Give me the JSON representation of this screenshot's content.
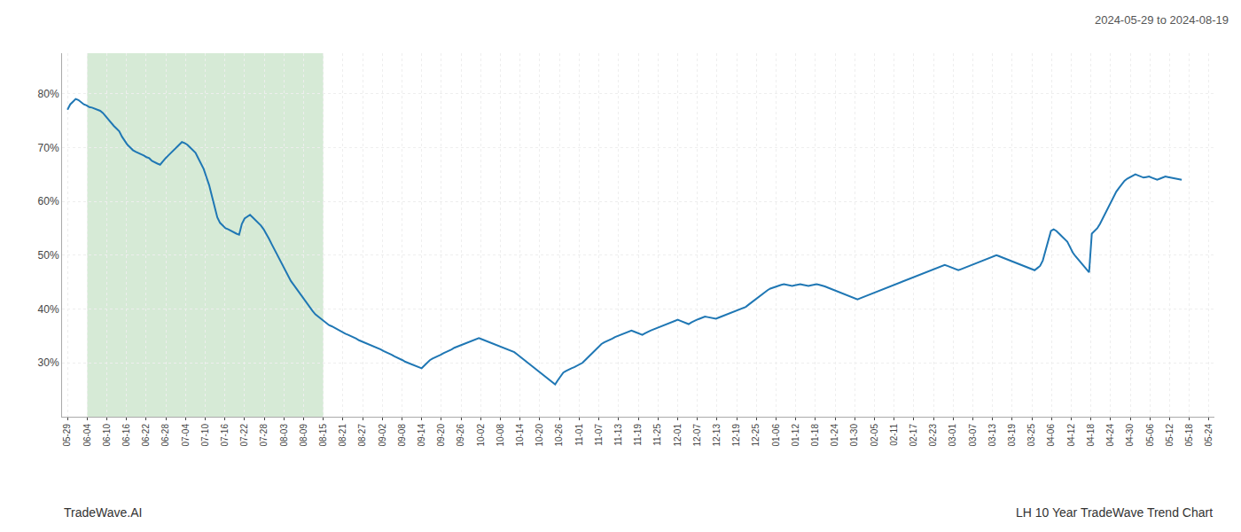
{
  "chart_data": {
    "type": "line",
    "title": "2024-05-29 to 2024-08-19",
    "annotations": [
      {
        "text": "TradeWave.AI"
      },
      {
        "text": "LH 10 Year TradeWave Trend Chart"
      }
    ],
    "color": "#1f77b4",
    "grid": true,
    "highlight": {
      "from": "06-04",
      "to": "08-15",
      "color": "#d6ead6"
    },
    "xlim": [
      -2,
      421
    ],
    "xticks": [
      {
        "value": 0,
        "label": "05-29"
      },
      {
        "value": 7.224138,
        "label": "06-04"
      },
      {
        "value": 14.448276,
        "label": "06-10"
      },
      {
        "value": 21.672414,
        "label": "06-16"
      },
      {
        "value": 28.896552,
        "label": "06-22"
      },
      {
        "value": 36.12069,
        "label": "06-28"
      },
      {
        "value": 43.344828,
        "label": "07-04"
      },
      {
        "value": 50.568966,
        "label": "07-10"
      },
      {
        "value": 57.793103,
        "label": "07-16"
      },
      {
        "value": 65.017241,
        "label": "07-22"
      },
      {
        "value": 72.241379,
        "label": "07-28"
      },
      {
        "value": 79.465517,
        "label": "08-03"
      },
      {
        "value": 86.689655,
        "label": "08-09"
      },
      {
        "value": 93.913793,
        "label": "08-15"
      },
      {
        "value": 101.137931,
        "label": "08-21"
      },
      {
        "value": 108.362069,
        "label": "08-27"
      },
      {
        "value": 115.586207,
        "label": "09-02"
      },
      {
        "value": 122.810345,
        "label": "09-08"
      },
      {
        "value": 130.034483,
        "label": "09-14"
      },
      {
        "value": 137.258621,
        "label": "09-20"
      },
      {
        "value": 144.482759,
        "label": "09-26"
      },
      {
        "value": 151.706897,
        "label": "10-02"
      },
      {
        "value": 158.931034,
        "label": "10-08"
      },
      {
        "value": 166.155172,
        "label": "10-14"
      },
      {
        "value": 173.37931,
        "label": "10-20"
      },
      {
        "value": 180.603448,
        "label": "10-26"
      },
      {
        "value": 187.827586,
        "label": "11-01"
      },
      {
        "value": 195.051724,
        "label": "11-07"
      },
      {
        "value": 202.275862,
        "label": "11-13"
      },
      {
        "value": 209.5,
        "label": "11-19"
      },
      {
        "value": 216.724138,
        "label": "11-25"
      },
      {
        "value": 223.948276,
        "label": "12-01"
      },
      {
        "value": 231.172414,
        "label": "12-07"
      },
      {
        "value": 238.396552,
        "label": "12-13"
      },
      {
        "value": 245.62069,
        "label": "12-19"
      },
      {
        "value": 252.844828,
        "label": "12-25"
      },
      {
        "value": 260.068966,
        "label": "01-06"
      },
      {
        "value": 267.293103,
        "label": "01-12"
      },
      {
        "value": 274.517241,
        "label": "01-18"
      },
      {
        "value": 281.741379,
        "label": "01-24"
      },
      {
        "value": 288.965517,
        "label": "01-30"
      },
      {
        "value": 296.189655,
        "label": "02-05"
      },
      {
        "value": 303.413793,
        "label": "02-11"
      },
      {
        "value": 310.637931,
        "label": "02-17"
      },
      {
        "value": 317.862069,
        "label": "02-23"
      },
      {
        "value": 325.086207,
        "label": "03-01"
      },
      {
        "value": 332.310345,
        "label": "03-07"
      },
      {
        "value": 339.534483,
        "label": "03-13"
      },
      {
        "value": 346.758621,
        "label": "03-19"
      },
      {
        "value": 353.982759,
        "label": "03-25"
      },
      {
        "value": 361.206897,
        "label": "04-06"
      },
      {
        "value": 368.431034,
        "label": "04-12"
      },
      {
        "value": 375.655172,
        "label": "04-18"
      },
      {
        "value": 382.87931,
        "label": "04-24"
      },
      {
        "value": 390.103448,
        "label": "04-30"
      },
      {
        "value": 397.327586,
        "label": "05-06"
      },
      {
        "value": 404.551724,
        "label": "05-12"
      },
      {
        "value": 411.775862,
        "label": "05-18"
      },
      {
        "value": 419,
        "label": "05-24"
      }
    ],
    "ylim": [
      0.2,
      0.875
    ],
    "yticks": [
      {
        "value": 0.3,
        "label": "30%"
      },
      {
        "value": 0.4,
        "label": "40%"
      },
      {
        "value": 0.5,
        "label": "50%"
      },
      {
        "value": 0.6,
        "label": "60%"
      },
      {
        "value": 0.7,
        "label": "70%"
      },
      {
        "value": 0.8,
        "label": "80%"
      }
    ],
    "values": [
      0.77,
      0.78,
      0.785,
      0.79,
      0.788,
      0.784,
      0.78,
      0.778,
      0.775,
      0.774,
      0.772,
      0.77,
      0.768,
      0.764,
      0.758,
      0.752,
      0.745,
      0.74,
      0.735,
      0.73,
      0.72,
      0.712,
      0.705,
      0.7,
      0.695,
      0.692,
      0.69,
      0.688,
      0.685,
      0.682,
      0.68,
      0.675,
      0.672,
      0.67,
      0.668,
      0.675,
      0.68,
      0.685,
      0.69,
      0.695,
      0.7,
      0.705,
      0.71,
      0.708,
      0.705,
      0.7,
      0.695,
      0.69,
      0.68,
      0.67,
      0.66,
      0.645,
      0.63,
      0.61,
      0.59,
      0.57,
      0.56,
      0.555,
      0.55,
      0.548,
      0.545,
      0.542,
      0.54,
      0.538,
      0.558,
      0.568,
      0.572,
      0.575,
      0.57,
      0.565,
      0.56,
      0.555,
      0.548,
      0.54,
      0.53,
      0.52,
      0.51,
      0.5,
      0.49,
      0.48,
      0.47,
      0.46,
      0.452,
      0.445,
      0.438,
      0.43,
      0.422,
      0.415,
      0.408,
      0.402,
      0.396,
      0.39,
      0.386,
      0.382,
      0.378,
      0.374,
      0.37,
      0.368,
      0.365,
      0.362,
      0.36,
      0.357,
      0.354,
      0.352,
      0.35,
      0.348,
      0.345,
      0.342,
      0.34,
      0.338,
      0.336,
      0.334,
      0.332,
      0.33,
      0.328,
      0.325,
      0.322,
      0.32,
      0.318,
      0.315,
      0.312,
      0.31,
      0.308,
      0.305,
      0.302,
      0.3,
      0.298,
      0.296,
      0.294,
      0.292,
      0.29,
      0.295,
      0.3,
      0.305,
      0.308,
      0.31,
      0.312,
      0.315,
      0.318,
      0.32,
      0.322,
      0.325,
      0.328,
      0.33,
      0.332,
      0.334,
      0.336,
      0.338,
      0.34,
      0.342,
      0.344,
      0.346,
      0.344,
      0.342,
      0.34,
      0.338,
      0.336,
      0.334,
      0.332,
      0.33,
      0.328,
      0.326,
      0.324,
      0.322,
      0.32,
      0.316,
      0.312,
      0.308,
      0.304,
      0.3,
      0.296,
      0.292,
      0.288,
      0.284,
      0.28,
      0.276,
      0.272,
      0.268,
      0.264,
      0.26,
      0.268,
      0.275,
      0.282,
      0.285,
      0.288,
      0.29,
      0.292,
      0.295,
      0.298,
      0.3,
      0.305,
      0.31,
      0.315,
      0.32,
      0.325,
      0.33,
      0.335,
      0.338,
      0.34,
      0.342,
      0.345,
      0.348,
      0.35,
      0.352,
      0.354,
      0.356,
      0.358,
      0.36,
      0.358,
      0.356,
      0.354,
      0.352,
      0.355,
      0.358,
      0.36,
      0.362,
      0.364,
      0.366,
      0.368,
      0.37,
      0.372,
      0.374,
      0.376,
      0.378,
      0.38,
      0.378,
      0.376,
      0.374,
      0.372,
      0.375,
      0.378,
      0.38,
      0.382,
      0.384,
      0.386,
      0.385,
      0.384,
      0.383,
      0.382,
      0.384,
      0.386,
      0.388,
      0.39,
      0.392,
      0.394,
      0.396,
      0.398,
      0.4,
      0.402,
      0.404,
      0.408,
      0.412,
      0.416,
      0.42,
      0.424,
      0.428,
      0.432,
      0.435,
      0.438,
      0.44,
      0.442,
      0.444,
      0.445,
      0.446,
      0.445,
      0.444,
      0.443,
      0.444,
      0.445,
      0.446,
      0.445,
      0.444,
      0.443,
      0.444,
      0.445,
      0.446,
      0.445,
      0.444,
      0.442,
      0.44,
      0.438,
      0.436,
      0.434,
      0.432,
      0.43,
      0.428,
      0.426,
      0.424,
      0.422,
      0.42,
      0.418,
      0.42,
      0.422,
      0.424,
      0.426,
      0.428,
      0.43,
      0.432,
      0.434,
      0.436,
      0.438,
      0.44,
      0.442,
      0.444,
      0.446,
      0.448,
      0.45,
      0.452,
      0.454,
      0.456,
      0.458,
      0.46,
      0.462,
      0.464,
      0.466,
      0.468,
      0.47,
      0.472,
      0.474,
      0.476,
      0.478,
      0.48,
      0.482,
      0.48,
      0.478,
      0.476,
      0.474,
      0.472,
      0.474,
      0.476,
      0.478,
      0.48,
      0.482,
      0.484,
      0.486,
      0.488,
      0.49,
      0.492,
      0.494,
      0.496,
      0.498,
      0.5,
      0.498,
      0.496,
      0.494,
      0.492,
      0.49,
      0.488,
      0.486,
      0.484,
      0.482,
      0.48,
      0.478,
      0.476,
      0.474,
      0.472,
      0.476,
      0.48,
      0.49,
      0.51,
      0.53,
      0.545,
      0.548,
      0.545,
      0.54,
      0.535,
      0.53,
      0.525,
      0.515,
      0.505,
      0.498,
      0.492,
      0.486,
      0.48,
      0.474,
      0.468,
      0.54,
      0.545,
      0.55,
      0.558,
      0.568,
      0.578,
      0.59,
      0.6,
      0.61,
      0.618,
      0.625,
      0.632,
      0.638,
      0.642,
      0.645,
      0.648,
      0.65,
      0.648,
      0.646,
      0.644,
      0.645,
      0.646,
      0.644,
      0.642,
      0.64,
      0.642,
      0.644,
      0.646,
      0.645,
      0.644,
      0.643,
      0.642,
      0.641,
      0.64
    ]
  }
}
